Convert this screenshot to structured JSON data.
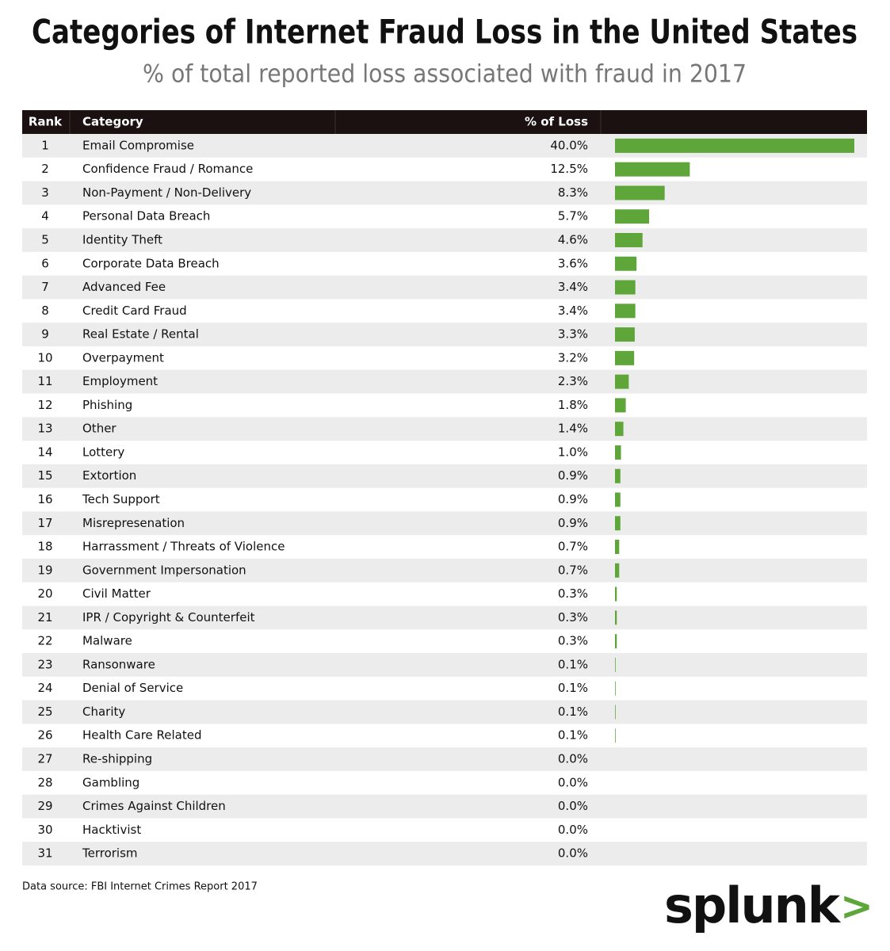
{
  "chart_data": {
    "type": "bar",
    "title": "Categories of Internet Fraud Loss in the United States",
    "subtitle": "% of total reported loss associated with fraud in 2017",
    "columns": [
      "Rank",
      "Category",
      "% of Loss"
    ],
    "ranks": [
      1,
      2,
      3,
      4,
      5,
      6,
      7,
      8,
      9,
      10,
      11,
      12,
      13,
      14,
      15,
      16,
      17,
      18,
      19,
      20,
      21,
      22,
      23,
      24,
      25,
      26,
      27,
      28,
      29,
      30,
      31
    ],
    "categories": [
      "Email Compromise",
      "Confidence Fraud / Romance",
      "Non-Payment / Non-Delivery",
      "Personal Data Breach",
      "Identity Theft",
      "Corporate Data Breach",
      "Advanced Fee",
      "Credit Card Fraud",
      "Real Estate / Rental",
      "Overpayment",
      "Employment",
      "Phishing",
      "Other",
      "Lottery",
      "Extortion",
      "Tech Support",
      "Misrepresenation",
      "Harrassment / Threats of Violence",
      "Government Impersonation",
      "Civil Matter",
      "IPR / Copyright & Counterfeit",
      "Malware",
      "Ransonware",
      "Denial of Service",
      "Charity",
      "Health Care Related",
      "Re-shipping",
      "Gambling",
      "Crimes Against Children",
      "Hacktivist",
      "Terrorism"
    ],
    "values": [
      40.0,
      12.5,
      8.3,
      5.7,
      4.6,
      3.6,
      3.4,
      3.4,
      3.3,
      3.2,
      2.3,
      1.8,
      1.4,
      1.0,
      0.9,
      0.9,
      0.9,
      0.7,
      0.7,
      0.3,
      0.3,
      0.3,
      0.1,
      0.1,
      0.1,
      0.1,
      0.0,
      0.0,
      0.0,
      0.0,
      0.0
    ],
    "value_labels": [
      "40.0%",
      "12.5%",
      "8.3%",
      "5.7%",
      "4.6%",
      "3.6%",
      "3.4%",
      "3.4%",
      "3.3%",
      "3.2%",
      "2.3%",
      "1.8%",
      "1.4%",
      "1.0%",
      "0.9%",
      "0.9%",
      "0.9%",
      "0.7%",
      "0.7%",
      "0.3%",
      "0.3%",
      "0.3%",
      "0.1%",
      "0.1%",
      "0.1%",
      "0.1%",
      "0.0%",
      "0.0%",
      "0.0%",
      "0.0%",
      "0.0%"
    ],
    "color": "#5ea63a",
    "source": "Data source: FBI Internet Crimes Report 2017",
    "logo": "splunk",
    "logo_mark": ">"
  }
}
